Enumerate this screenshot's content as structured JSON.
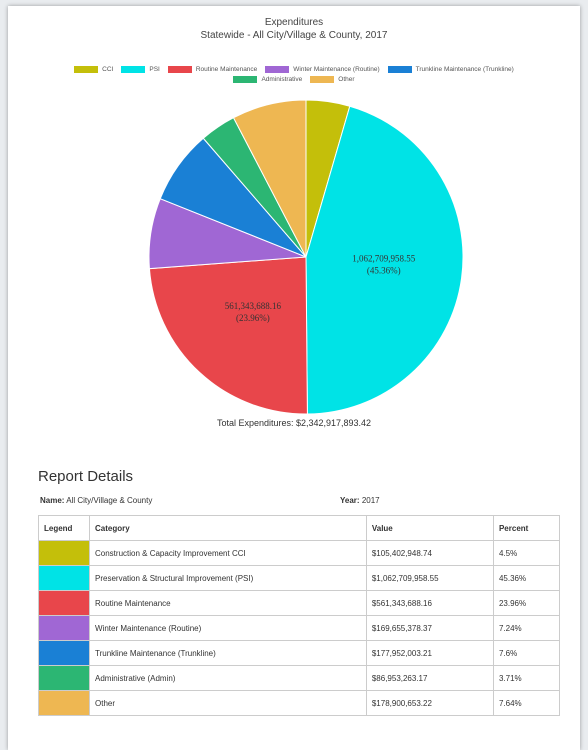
{
  "chart_data": {
    "type": "pie",
    "title": "Expenditures",
    "subtitle": "Statewide - All City/Village & County, 2017",
    "categories": [
      "CCI",
      "PSI",
      "Routine Maintenance",
      "Winter Maintenance (Routine)",
      "Trunkline Maintenance (Trunkline)",
      "Administrative",
      "Other"
    ],
    "values": [
      105402948.74,
      1062709958.55,
      561343688.16,
      169655378.37,
      177952003.21,
      86953263.17,
      178900653.22
    ],
    "value_labels": [
      null,
      "1,062,709,958.55",
      "561,343,688.16",
      null,
      null,
      null,
      null
    ],
    "percent_labels": [
      null,
      "(45.36%)",
      "(23.96%)",
      null,
      null,
      null,
      null
    ],
    "colors": [
      "#c4bf0a",
      "#00e3e6",
      "#e8464b",
      "#a067d4",
      "#1a80d5",
      "#2cb673",
      "#eeb752"
    ],
    "legend": "top",
    "total_label": "Total Expenditures: $2,342,917,893.42"
  },
  "report": {
    "heading": "Report Details",
    "name_label": "Name:",
    "name": "All City/Village & County",
    "year_label": "Year:",
    "year": "2017",
    "table": {
      "columns": [
        "Legend",
        "Category",
        "Value",
        "Percent"
      ],
      "rows": [
        [
          "Construction & Capacity Improvement CCI",
          "$105,402,948.74",
          "4.5%"
        ],
        [
          "Preservation & Structural Improvement (PSI)",
          "$1,062,709,958.55",
          "45.36%"
        ],
        [
          "Routine Maintenance",
          "$561,343,688.16",
          "23.96%"
        ],
        [
          "Winter Maintenance (Routine)",
          "$169,655,378.37",
          "7.24%"
        ],
        [
          "Trunkline Maintenance (Trunkline)",
          "$177,952,003.21",
          "7.6%"
        ],
        [
          "Administrative (Admin)",
          "$86,953,263.17",
          "3.71%"
        ],
        [
          "Other",
          "$178,900,653.22",
          "7.64%"
        ]
      ]
    }
  }
}
